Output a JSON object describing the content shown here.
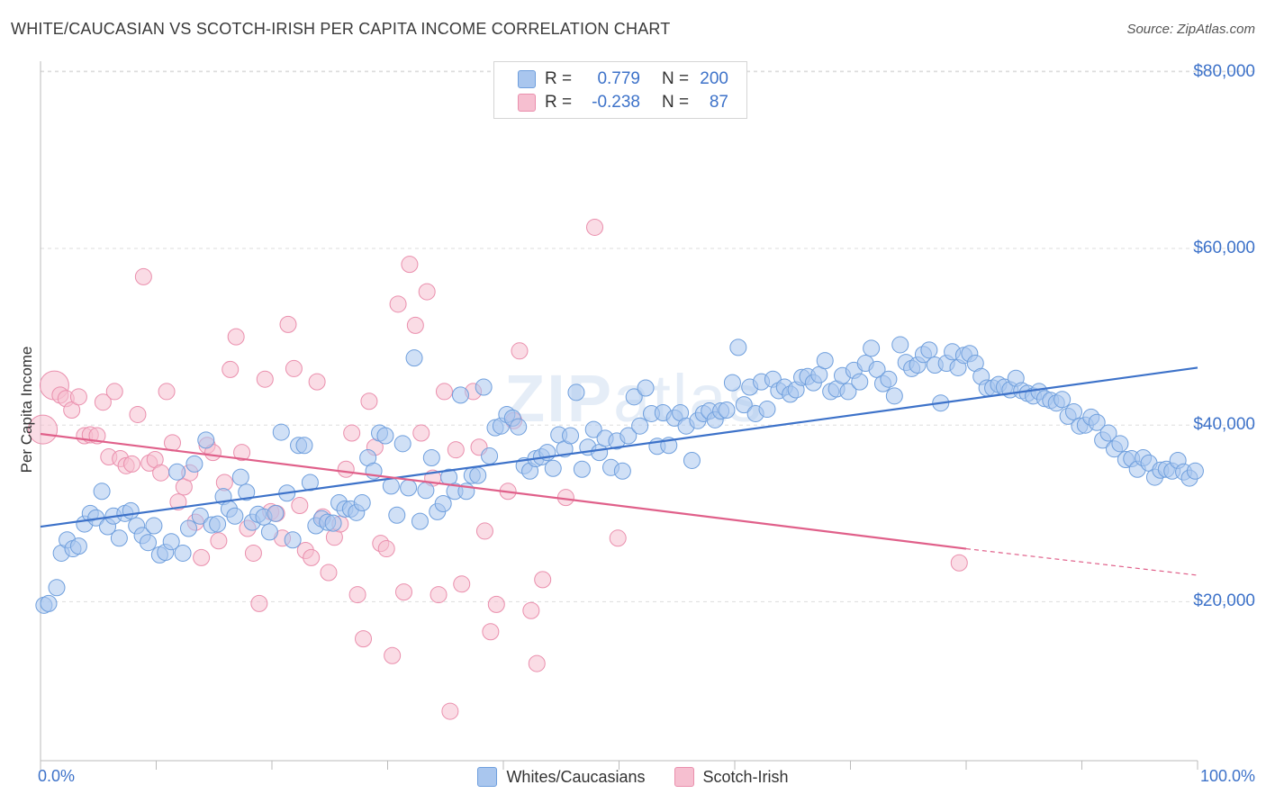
{
  "header": {
    "title": "WHITE/CAUCASIAN VS SCOTCH-IRISH PER CAPITA INCOME CORRELATION CHART",
    "source": "Source: ZipAtlas.com"
  },
  "watermark": {
    "bold": "ZIP",
    "light": "atlas"
  },
  "legend": {
    "rows": [
      {
        "swatch_fill": "#a9c6ee",
        "swatch_border": "#6f9fdd",
        "r_label": "R =",
        "r_value": "0.779",
        "n_label": "N =",
        "n_value": "200"
      },
      {
        "swatch_fill": "#f6bfd0",
        "swatch_border": "#ea8fad",
        "r_label": "R =",
        "r_value": "-0.238",
        "n_label": "N =",
        "n_value": "87"
      }
    ]
  },
  "bottom_legend": [
    {
      "label": "Whites/Caucasians",
      "fill": "#a9c6ee",
      "border": "#6f9fdd"
    },
    {
      "label": "Scotch-Irish",
      "fill": "#f6bfd0",
      "border": "#ea8fad"
    }
  ],
  "axes": {
    "ylabel": "Per Capita Income",
    "x_min_label": "0.0%",
    "x_max_label": "100.0%",
    "y_ticks": [
      {
        "value": 20000,
        "label": "$20,000"
      },
      {
        "value": 40000,
        "label": "$40,000"
      },
      {
        "value": 60000,
        "label": "$60,000"
      },
      {
        "value": 80000,
        "label": "$80,000"
      }
    ]
  },
  "chart_data": {
    "type": "scatter",
    "title": "WHITE/CAUCASIAN VS SCOTCH-IRISH PER CAPITA INCOME CORRELATION CHART",
    "xlabel": "",
    "ylabel": "Per Capita Income",
    "xlim": [
      0,
      100
    ],
    "ylim": [
      2000,
      81000
    ],
    "grid": true,
    "colors": {
      "whites": "#3d72c9",
      "whites_fill": "#a9c6ee",
      "scotch": "#e0608a",
      "scotch_fill": "#f6bfd0"
    },
    "series": [
      {
        "name": "Whites/Caucasians",
        "trend": {
          "x": [
            0,
            100
          ],
          "y": [
            28500,
            46500
          ]
        },
        "points": [
          [
            0.3,
            19600
          ],
          [
            0.7,
            19800
          ],
          [
            1.4,
            21600
          ],
          [
            1.8,
            25500
          ],
          [
            2.3,
            27000
          ],
          [
            2.8,
            26000
          ],
          [
            3.3,
            26300
          ],
          [
            3.8,
            28800
          ],
          [
            4.3,
            30000
          ],
          [
            4.8,
            29500
          ],
          [
            5.3,
            32500
          ],
          [
            5.8,
            28500
          ],
          [
            6.3,
            29700
          ],
          [
            6.8,
            27200
          ],
          [
            7.3,
            30000
          ],
          [
            7.8,
            30300
          ],
          [
            8.3,
            28600
          ],
          [
            8.8,
            27500
          ],
          [
            9.3,
            26700
          ],
          [
            9.8,
            28600
          ],
          [
            10.3,
            25300
          ],
          [
            10.8,
            25600
          ],
          [
            11.3,
            26800
          ],
          [
            11.8,
            34700
          ],
          [
            12.3,
            25500
          ],
          [
            12.8,
            28300
          ],
          [
            13.3,
            35600
          ],
          [
            13.8,
            29700
          ],
          [
            14.3,
            38300
          ],
          [
            14.8,
            28700
          ],
          [
            15.3,
            28800
          ],
          [
            15.8,
            31900
          ],
          [
            16.3,
            30500
          ],
          [
            16.8,
            29700
          ],
          [
            17.3,
            34100
          ],
          [
            17.8,
            32400
          ],
          [
            18.3,
            29000
          ],
          [
            18.8,
            29900
          ],
          [
            19.3,
            29600
          ],
          [
            19.8,
            27900
          ],
          [
            20.3,
            30000
          ],
          [
            20.8,
            39200
          ],
          [
            21.3,
            32300
          ],
          [
            21.8,
            27000
          ],
          [
            22.3,
            37700
          ],
          [
            22.8,
            37700
          ],
          [
            23.3,
            33500
          ],
          [
            23.8,
            28600
          ],
          [
            24.3,
            29400
          ],
          [
            24.8,
            29000
          ],
          [
            25.3,
            28900
          ],
          [
            25.8,
            31200
          ],
          [
            26.3,
            30500
          ],
          [
            26.8,
            30500
          ],
          [
            27.3,
            30100
          ],
          [
            27.8,
            31200
          ],
          [
            28.3,
            36300
          ],
          [
            28.8,
            34800
          ],
          [
            29.3,
            39100
          ],
          [
            29.8,
            38800
          ],
          [
            30.3,
            33100
          ],
          [
            30.8,
            29800
          ],
          [
            31.3,
            37900
          ],
          [
            31.8,
            32900
          ],
          [
            32.3,
            47600
          ],
          [
            32.8,
            29100
          ],
          [
            33.3,
            32600
          ],
          [
            33.8,
            36300
          ],
          [
            34.3,
            30200
          ],
          [
            34.8,
            31100
          ],
          [
            35.3,
            34100
          ],
          [
            35.8,
            32500
          ],
          [
            36.3,
            43400
          ],
          [
            36.8,
            32500
          ],
          [
            37.3,
            34300
          ],
          [
            37.8,
            34300
          ],
          [
            38.3,
            44300
          ],
          [
            38.8,
            36500
          ],
          [
            39.3,
            39700
          ],
          [
            39.8,
            39900
          ],
          [
            40.3,
            41200
          ],
          [
            40.8,
            40800
          ],
          [
            41.3,
            39800
          ],
          [
            41.8,
            35400
          ],
          [
            42.3,
            34800
          ],
          [
            42.8,
            36200
          ],
          [
            43.3,
            36400
          ],
          [
            43.8,
            36900
          ],
          [
            44.3,
            35100
          ],
          [
            44.8,
            38900
          ],
          [
            45.3,
            37300
          ],
          [
            45.8,
            38800
          ],
          [
            46.3,
            43700
          ],
          [
            46.8,
            35000
          ],
          [
            47.3,
            37500
          ],
          [
            47.8,
            39500
          ],
          [
            48.3,
            36900
          ],
          [
            48.8,
            38500
          ],
          [
            49.3,
            35200
          ],
          [
            49.8,
            38200
          ],
          [
            50.3,
            34800
          ],
          [
            50.8,
            38800
          ],
          [
            51.3,
            43200
          ],
          [
            51.8,
            39900
          ],
          [
            52.3,
            44200
          ],
          [
            52.8,
            41300
          ],
          [
            53.3,
            37600
          ],
          [
            53.8,
            41400
          ],
          [
            54.3,
            37700
          ],
          [
            54.8,
            40800
          ],
          [
            55.3,
            41400
          ],
          [
            55.8,
            39900
          ],
          [
            56.3,
            36000
          ],
          [
            56.8,
            40500
          ],
          [
            57.3,
            41300
          ],
          [
            57.8,
            41600
          ],
          [
            58.3,
            40600
          ],
          [
            58.8,
            41600
          ],
          [
            59.3,
            41700
          ],
          [
            59.8,
            44800
          ],
          [
            60.3,
            48800
          ],
          [
            60.8,
            42300
          ],
          [
            61.3,
            44300
          ],
          [
            61.8,
            41300
          ],
          [
            62.3,
            44900
          ],
          [
            62.8,
            41800
          ],
          [
            63.3,
            45200
          ],
          [
            63.8,
            43900
          ],
          [
            64.3,
            44300
          ],
          [
            64.8,
            43500
          ],
          [
            65.3,
            44000
          ],
          [
            65.8,
            45400
          ],
          [
            66.3,
            45500
          ],
          [
            66.8,
            44800
          ],
          [
            67.3,
            45700
          ],
          [
            67.8,
            47300
          ],
          [
            68.3,
            43800
          ],
          [
            68.8,
            44100
          ],
          [
            69.3,
            45600
          ],
          [
            69.8,
            43800
          ],
          [
            70.3,
            46200
          ],
          [
            70.8,
            44900
          ],
          [
            71.3,
            47000
          ],
          [
            71.8,
            48700
          ],
          [
            72.3,
            46300
          ],
          [
            72.8,
            44700
          ],
          [
            73.3,
            45200
          ],
          [
            73.8,
            43300
          ],
          [
            74.3,
            49100
          ],
          [
            74.8,
            47100
          ],
          [
            75.3,
            46400
          ],
          [
            75.8,
            46800
          ],
          [
            76.3,
            48000
          ],
          [
            76.8,
            48500
          ],
          [
            77.3,
            46800
          ],
          [
            77.8,
            42500
          ],
          [
            78.3,
            47000
          ],
          [
            78.8,
            48300
          ],
          [
            79.3,
            46500
          ],
          [
            79.8,
            47900
          ],
          [
            80.3,
            48100
          ],
          [
            80.8,
            47000
          ],
          [
            81.3,
            45500
          ],
          [
            81.8,
            44200
          ],
          [
            82.3,
            44200
          ],
          [
            82.8,
            44600
          ],
          [
            83.3,
            44300
          ],
          [
            83.8,
            44000
          ],
          [
            84.3,
            45300
          ],
          [
            84.8,
            43900
          ],
          [
            85.3,
            43600
          ],
          [
            85.8,
            43300
          ],
          [
            86.3,
            43800
          ],
          [
            86.8,
            43000
          ],
          [
            87.3,
            42800
          ],
          [
            87.8,
            42500
          ],
          [
            88.3,
            42900
          ],
          [
            88.8,
            41000
          ],
          [
            89.3,
            41500
          ],
          [
            89.8,
            39900
          ],
          [
            90.3,
            40000
          ],
          [
            90.8,
            40900
          ],
          [
            91.3,
            40300
          ],
          [
            91.8,
            38300
          ],
          [
            92.3,
            39100
          ],
          [
            92.8,
            37300
          ],
          [
            93.3,
            37900
          ],
          [
            93.8,
            36100
          ],
          [
            94.3,
            36200
          ],
          [
            94.8,
            35000
          ],
          [
            95.3,
            36300
          ],
          [
            95.8,
            35700
          ],
          [
            96.3,
            34100
          ],
          [
            96.8,
            34900
          ],
          [
            97.3,
            35000
          ],
          [
            97.8,
            34800
          ],
          [
            98.3,
            36000
          ],
          [
            98.8,
            34700
          ],
          [
            99.3,
            34000
          ],
          [
            99.8,
            34800
          ]
        ]
      },
      {
        "name": "Scotch-Irish",
        "trend": {
          "x": [
            0,
            80
          ],
          "y": [
            39000,
            26000
          ]
        },
        "trend_dashed": {
          "x": [
            80,
            100
          ],
          "y": [
            26000,
            23000
          ]
        },
        "points": [
          [
            0.2,
            39500
          ],
          [
            1.2,
            44500
          ],
          [
            1.7,
            43400
          ],
          [
            2.2,
            43000
          ],
          [
            2.7,
            41700
          ],
          [
            3.3,
            43200
          ],
          [
            3.8,
            38800
          ],
          [
            4.3,
            38900
          ],
          [
            4.9,
            38800
          ],
          [
            5.4,
            42600
          ],
          [
            5.9,
            36400
          ],
          [
            6.4,
            43800
          ],
          [
            6.9,
            36200
          ],
          [
            7.4,
            35400
          ],
          [
            7.9,
            35600
          ],
          [
            8.4,
            41200
          ],
          [
            8.9,
            56800
          ],
          [
            9.4,
            35700
          ],
          [
            9.9,
            36100
          ],
          [
            10.4,
            34600
          ],
          [
            10.9,
            43800
          ],
          [
            11.4,
            38000
          ],
          [
            11.9,
            31300
          ],
          [
            12.4,
            33000
          ],
          [
            12.9,
            34600
          ],
          [
            13.4,
            29000
          ],
          [
            13.9,
            25000
          ],
          [
            14.4,
            37700
          ],
          [
            14.9,
            36900
          ],
          [
            15.4,
            26900
          ],
          [
            15.9,
            33500
          ],
          [
            16.4,
            46300
          ],
          [
            16.9,
            50000
          ],
          [
            17.4,
            36900
          ],
          [
            17.9,
            28300
          ],
          [
            18.4,
            25500
          ],
          [
            18.9,
            19800
          ],
          [
            19.4,
            45200
          ],
          [
            19.9,
            30200
          ],
          [
            20.4,
            30000
          ],
          [
            20.9,
            27200
          ],
          [
            21.4,
            51400
          ],
          [
            21.9,
            46400
          ],
          [
            22.4,
            30900
          ],
          [
            22.9,
            25800
          ],
          [
            23.4,
            25000
          ],
          [
            23.9,
            44900
          ],
          [
            24.4,
            29600
          ],
          [
            24.9,
            23300
          ],
          [
            25.4,
            27300
          ],
          [
            25.9,
            28800
          ],
          [
            26.4,
            35000
          ],
          [
            26.9,
            39100
          ],
          [
            27.4,
            20800
          ],
          [
            27.9,
            15800
          ],
          [
            28.4,
            42700
          ],
          [
            28.9,
            37500
          ],
          [
            29.4,
            26600
          ],
          [
            29.9,
            26000
          ],
          [
            30.4,
            13900
          ],
          [
            30.9,
            53700
          ],
          [
            31.4,
            21100
          ],
          [
            31.9,
            58200
          ],
          [
            32.4,
            51300
          ],
          [
            32.9,
            39100
          ],
          [
            33.4,
            55100
          ],
          [
            33.9,
            34000
          ],
          [
            34.4,
            20800
          ],
          [
            34.9,
            43800
          ],
          [
            35.4,
            7600
          ],
          [
            35.9,
            37200
          ],
          [
            36.4,
            22000
          ],
          [
            37.4,
            43800
          ],
          [
            37.9,
            37500
          ],
          [
            38.4,
            28000
          ],
          [
            38.9,
            16600
          ],
          [
            39.4,
            19700
          ],
          [
            40.4,
            32500
          ],
          [
            40.9,
            40500
          ],
          [
            41.4,
            48400
          ],
          [
            42.4,
            19000
          ],
          [
            42.9,
            13000
          ],
          [
            43.4,
            22500
          ],
          [
            45.4,
            31800
          ],
          [
            47.9,
            62400
          ],
          [
            49.9,
            27200
          ],
          [
            79.4,
            24400
          ]
        ]
      }
    ]
  }
}
